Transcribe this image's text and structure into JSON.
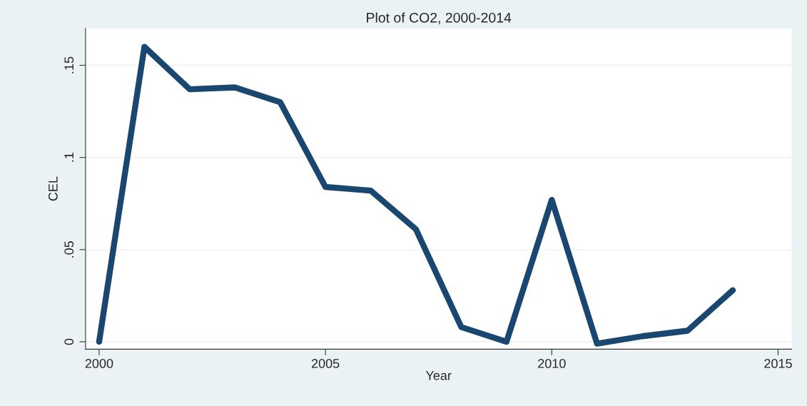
{
  "chart_data": {
    "type": "line",
    "title": "Plot of CO2, 2000-2014",
    "xlabel": "Year",
    "ylabel": "CEL",
    "x": [
      2000,
      2001,
      2002,
      2003,
      2004,
      2005,
      2006,
      2007,
      2008,
      2009,
      2010,
      2011,
      2012,
      2013,
      2014
    ],
    "series": [
      {
        "color": "#1a476f",
        "values": [
          0,
          0.16,
          0.137,
          0.138,
          0.13,
          0.084,
          0.082,
          0.061,
          0.008,
          0,
          0.077,
          -0.001,
          0.003,
          0.006,
          0.028
        ]
      }
    ],
    "xlim": [
      1999.7,
      2015.3
    ],
    "ylim": [
      -0.004,
      0.17
    ],
    "xticks": [
      2000,
      2005,
      2010,
      2015
    ],
    "yticks": [
      {
        "value": 0,
        "label": "0"
      },
      {
        "value": 0.05,
        "label": ".05"
      },
      {
        "value": 0.1,
        "label": ".1"
      },
      {
        "value": 0.15,
        "label": ".15"
      }
    ],
    "grid": "y",
    "marker": "none",
    "line_style": "solid"
  }
}
